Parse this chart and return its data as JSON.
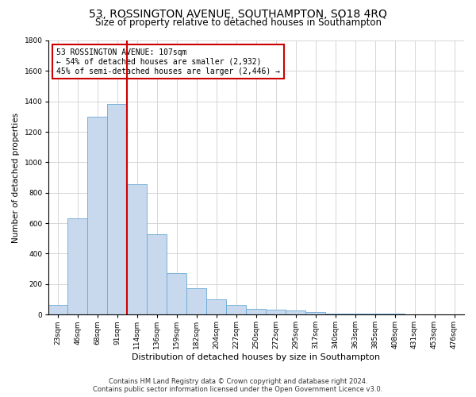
{
  "title": "53, ROSSINGTON AVENUE, SOUTHAMPTON, SO18 4RQ",
  "subtitle": "Size of property relative to detached houses in Southampton",
  "xlabel": "Distribution of detached houses by size in Southampton",
  "ylabel": "Number of detached properties",
  "categories": [
    "23sqm",
    "46sqm",
    "68sqm",
    "91sqm",
    "114sqm",
    "136sqm",
    "159sqm",
    "182sqm",
    "204sqm",
    "227sqm",
    "250sqm",
    "272sqm",
    "295sqm",
    "317sqm",
    "340sqm",
    "363sqm",
    "385sqm",
    "408sqm",
    "431sqm",
    "453sqm",
    "476sqm"
  ],
  "values": [
    62,
    630,
    1300,
    1385,
    855,
    525,
    270,
    175,
    100,
    62,
    35,
    30,
    25,
    18,
    7,
    7,
    7,
    5,
    3,
    3,
    3
  ],
  "bar_color": "#c8d9ee",
  "bar_edge_color": "#6aaad4",
  "vline_color": "#cc0000",
  "annotation_text": "53 ROSSINGTON AVENUE: 107sqm\n← 54% of detached houses are smaller (2,932)\n45% of semi-detached houses are larger (2,446) →",
  "annotation_box_color": "#ffffff",
  "annotation_box_edge_color": "#cc0000",
  "ylim": [
    0,
    1800
  ],
  "yticks": [
    0,
    200,
    400,
    600,
    800,
    1000,
    1200,
    1400,
    1600,
    1800
  ],
  "footer_line1": "Contains HM Land Registry data © Crown copyright and database right 2024.",
  "footer_line2": "Contains public sector information licensed under the Open Government Licence v3.0.",
  "bg_color": "#ffffff",
  "grid_color": "#d0d0d0",
  "title_fontsize": 10,
  "subtitle_fontsize": 8.5,
  "xlabel_fontsize": 8,
  "ylabel_fontsize": 7.5,
  "tick_fontsize": 6.5,
  "annotation_fontsize": 7,
  "footer_fontsize": 6
}
